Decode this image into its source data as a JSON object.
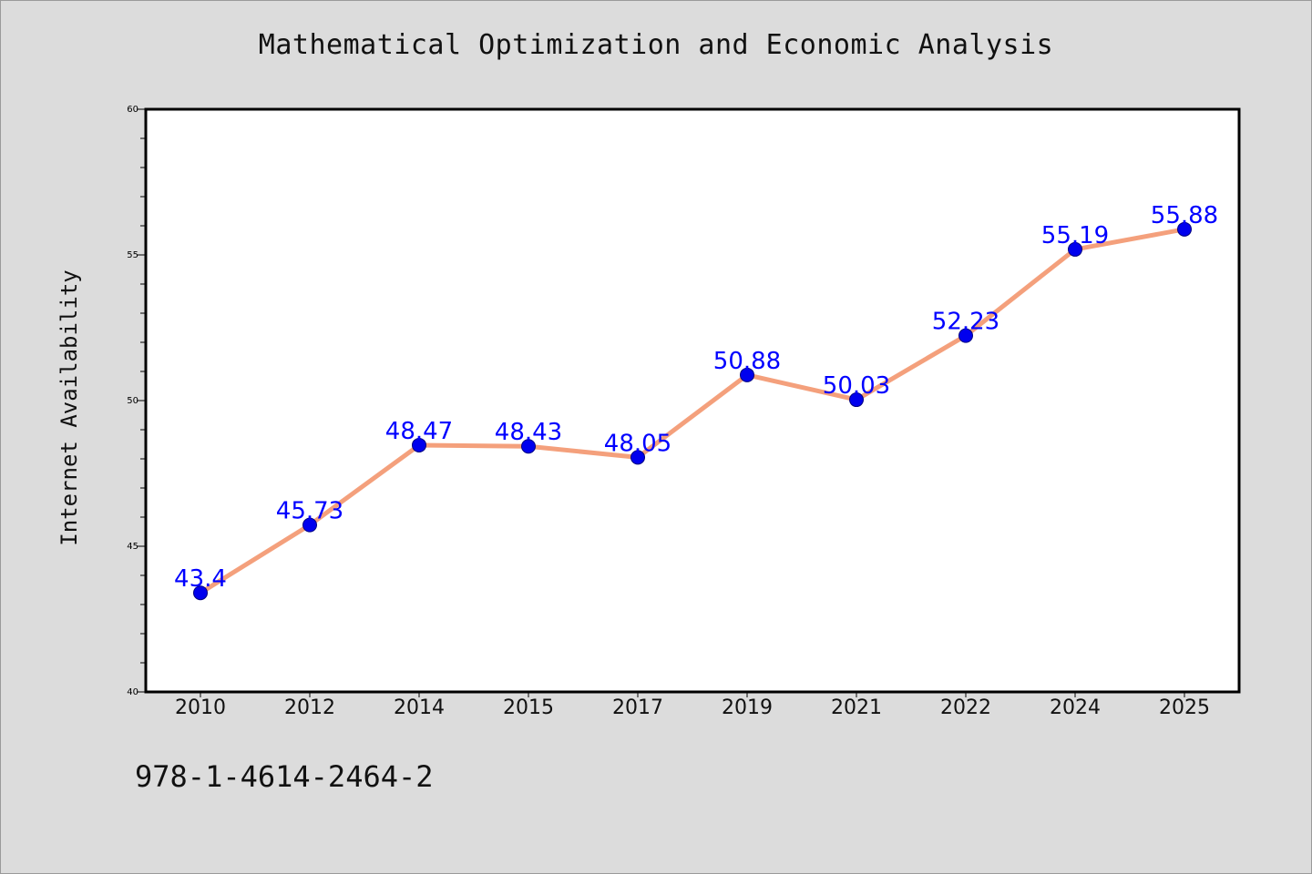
{
  "chart_data": {
    "type": "line",
    "title": "Mathematical Optimization and Economic Analysis",
    "ylabel": "Internet Availability",
    "xlabel": "",
    "categories": [
      "2010",
      "2012",
      "2014",
      "2015",
      "2017",
      "2019",
      "2021",
      "2022",
      "2024",
      "2025"
    ],
    "values": [
      43.4,
      45.73,
      48.47,
      48.43,
      48.05,
      50.88,
      50.03,
      52.23,
      55.19,
      55.88
    ],
    "data_labels": [
      "43.4",
      "45.73",
      "48.47",
      "48.43",
      "48.05",
      "50.88",
      "50.03",
      "52.23",
      "55.19",
      "55.88"
    ],
    "ylim": [
      40,
      60
    ],
    "yticks": [
      40,
      45,
      50,
      55,
      60
    ],
    "ytick_labels": [
      "40",
      "45",
      "50",
      "55",
      "60"
    ],
    "grid": false,
    "legend": "none",
    "colors": {
      "line": "#f4a07c",
      "marker": "#0000ee",
      "marker_edge": "#000080",
      "data_label": "#0000ff",
      "plot_background": "#ffffff",
      "figure_background": "#dcdcdc"
    }
  },
  "annotation": {
    "text": "978-1-4614-2464-2"
  }
}
